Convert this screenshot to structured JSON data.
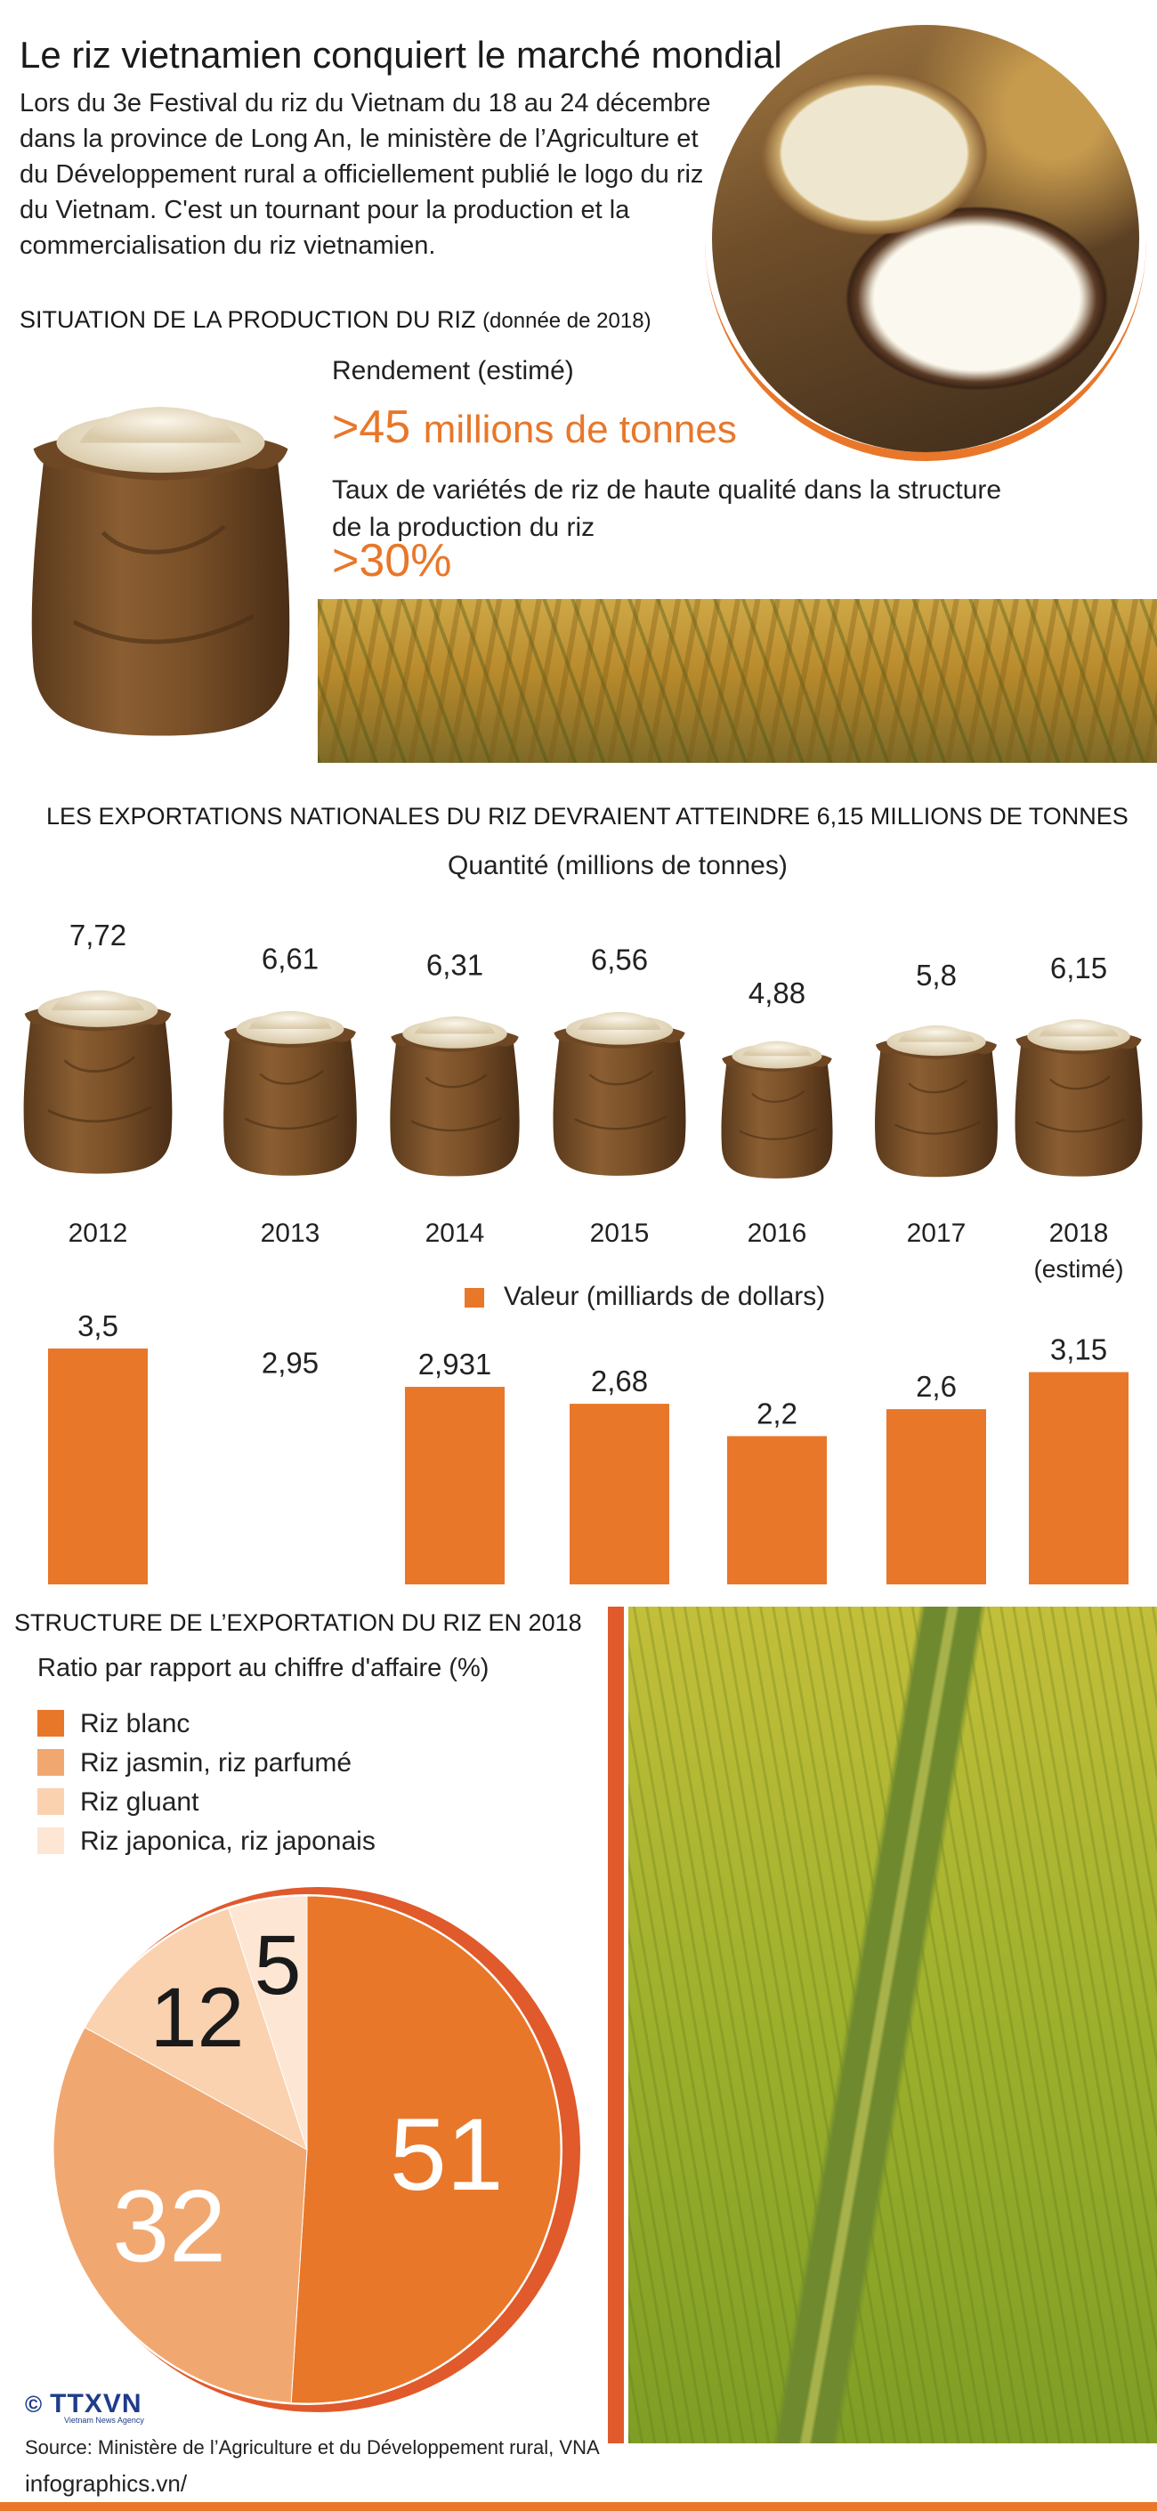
{
  "title": "Le riz vietnamien conquiert le marché mondial",
  "intro": "Lors du 3e Festival du riz du Vietnam du 18 au 24 décembre dans la province de Long An, le ministère de l’Agriculture et du Développement rural a officiellement publié le logo du riz du Vietnam. C'est un tournant pour la production et la commercialisation du riz vietnamien.",
  "production": {
    "heading": "SITUATION DE LA PRODUCTION DU RIZ",
    "heading_note": "(donnée de 2018)",
    "yield_label": "Rendement (estimé)",
    "yield_value": ">45",
    "yield_unit": "millions de tonnes",
    "quality_label_line1": "Taux de variétés de riz de haute qualité dans la structure",
    "quality_label_line2": "de la production du riz",
    "quality_value": ">30%"
  },
  "exports": {
    "heading": "LES EXPORTATIONS NATIONALES DU RIZ DEVRAIENT ATTEINDRE 6,15 MILLIONS DE TONNES",
    "quantity_caption": "Quantité (millions de tonnes)",
    "value_legend": "Valeur (milliards de dollars)",
    "estimate_note": "(estimé)"
  },
  "chart_data": [
    {
      "type": "bar",
      "title": "LES EXPORTATIONS NATIONALES DU RIZ DEVRAIENT ATTEINDRE 6,15 MILLIONS DE TONNES",
      "subtitle": "Quantité (millions de tonnes)",
      "categories": [
        "2012",
        "2013",
        "2014",
        "2015",
        "2016",
        "2017",
        "2018"
      ],
      "values": [
        7.72,
        6.61,
        6.31,
        6.56,
        4.88,
        5.8,
        6.15
      ],
      "labels": [
        "7,72",
        "6,61",
        "6,31",
        "6,56",
        "4,88",
        "5,8",
        "6,15"
      ],
      "category_note_last": "(estimé)",
      "marker": "rice-sack"
    },
    {
      "type": "bar",
      "legend": "Valeur (milliards de dollars)",
      "categories": [
        "2012",
        "2013",
        "2014",
        "2015",
        "2016",
        "2017",
        "2018"
      ],
      "values": [
        3.5,
        2.95,
        2.931,
        2.68,
        2.2,
        2.6,
        3.15
      ],
      "labels": [
        "3,5",
        "2,95",
        "2,931",
        "2,68",
        "2,2",
        "2,6",
        "3,15"
      ],
      "bars_drawn": [
        true,
        false,
        true,
        true,
        true,
        true,
        true
      ],
      "color": "#e8772a"
    },
    {
      "type": "pie",
      "title": "STRUCTURE DE L’EXPORTATION DU RIZ EN 2018",
      "subtitle": "Ratio par rapport au chiffre d'affaire (%)",
      "slices": [
        {
          "name": "Riz blanc",
          "value": 51,
          "color": "#e8772a",
          "label_color": "#ffffff"
        },
        {
          "name": "Riz jasmin, riz parfumé",
          "value": 32,
          "color": "#f0a870",
          "label_color": "#ffffff"
        },
        {
          "name": "Riz gluant",
          "value": 12,
          "color": "#fad2b0",
          "label_color": "#1a1a1a"
        },
        {
          "name": "Riz japonica, riz japonais",
          "value": 5,
          "color": "#fde6d3",
          "label_color": "#1a1a1a"
        }
      ]
    }
  ],
  "structure": {
    "heading": "STRUCTURE DE L’EXPORTATION DU RIZ EN 2018",
    "subheading": "Ratio par rapport au chiffre d'affaire (%)"
  },
  "footer": {
    "logo": "TTXVN",
    "logo_sub": "Vietnam News Agency",
    "copyright": "©",
    "source": "Source: Ministère de l’Agriculture et du Développement rural, VNA",
    "site": "infographics.vn/"
  },
  "colors": {
    "accent": "#e8772a",
    "accent_dark": "#e05a2b"
  }
}
